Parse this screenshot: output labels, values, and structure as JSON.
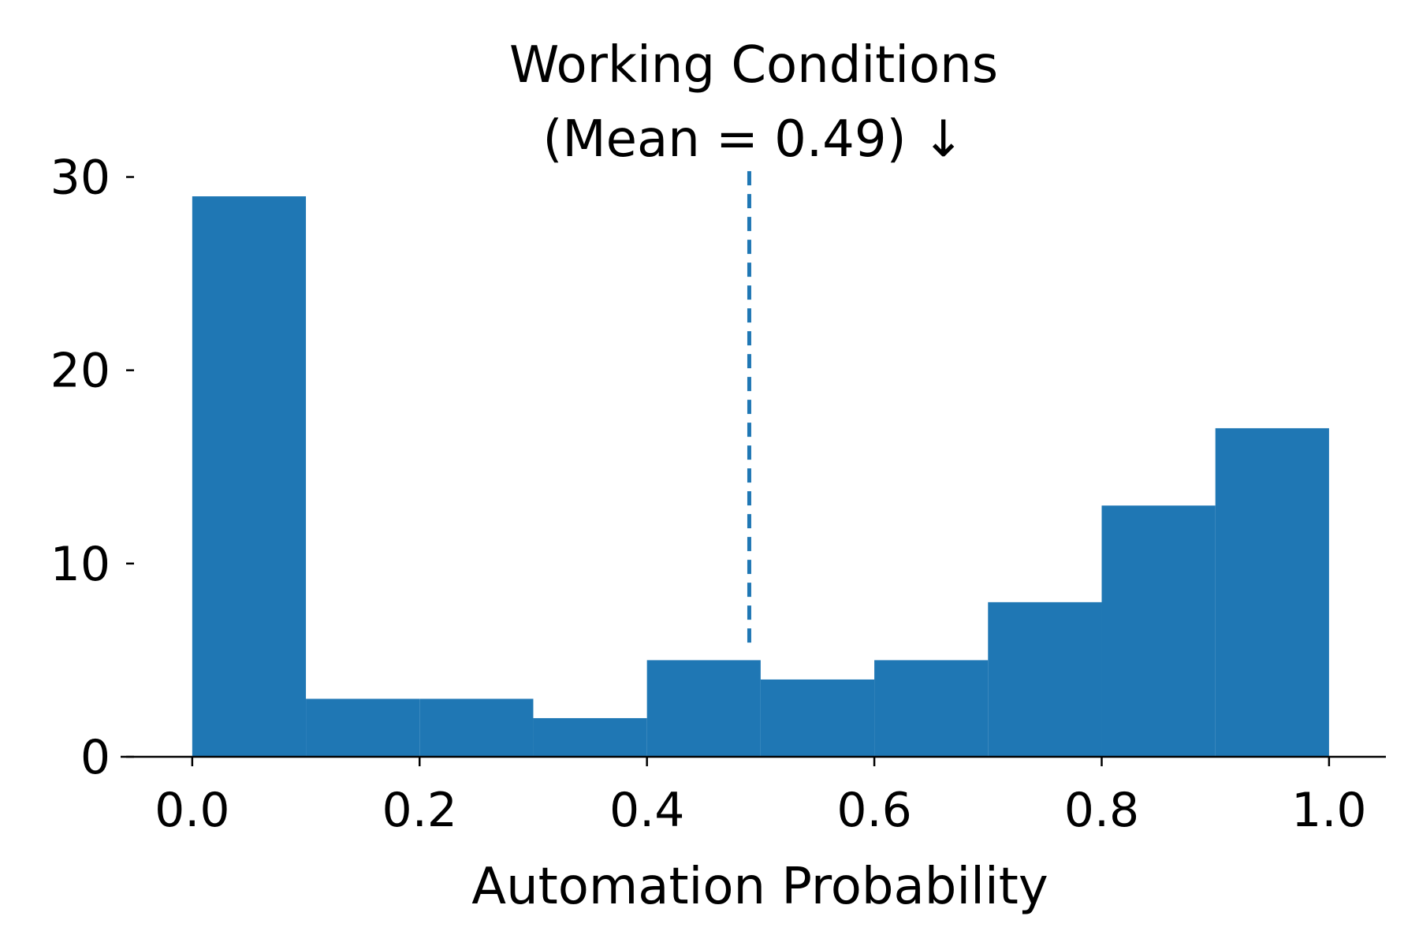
{
  "chart_data": {
    "type": "bar",
    "title_line1": "Working Conditions",
    "title_line2": "(Mean = 0.49) ↓",
    "xlabel": "Automation Probability",
    "ylabel": "",
    "bin_edges": [
      0.0,
      0.1,
      0.2,
      0.3,
      0.4,
      0.5,
      0.6,
      0.7,
      0.8,
      0.9,
      1.0
    ],
    "values": [
      29,
      3,
      3,
      2,
      5,
      4,
      5,
      8,
      13,
      17
    ],
    "mean": 0.49,
    "mean_line_top": 30.3,
    "mean_line_bottom": 5.5,
    "xlim": [
      -0.063,
      1.05
    ],
    "ylim": [
      0,
      31
    ],
    "xticks": [
      "0.0",
      "0.2",
      "0.4",
      "0.6",
      "0.8",
      "1.0"
    ],
    "xtick_values": [
      0.0,
      0.2,
      0.4,
      0.6,
      0.8,
      1.0
    ],
    "yticks": [
      "0",
      "10",
      "20",
      "30"
    ],
    "ytick_values": [
      0,
      10,
      20,
      30
    ],
    "grid": false,
    "colors": {
      "bar": "#1f77b4",
      "mean_line": "#1f77b4",
      "axis": "#000000"
    }
  }
}
